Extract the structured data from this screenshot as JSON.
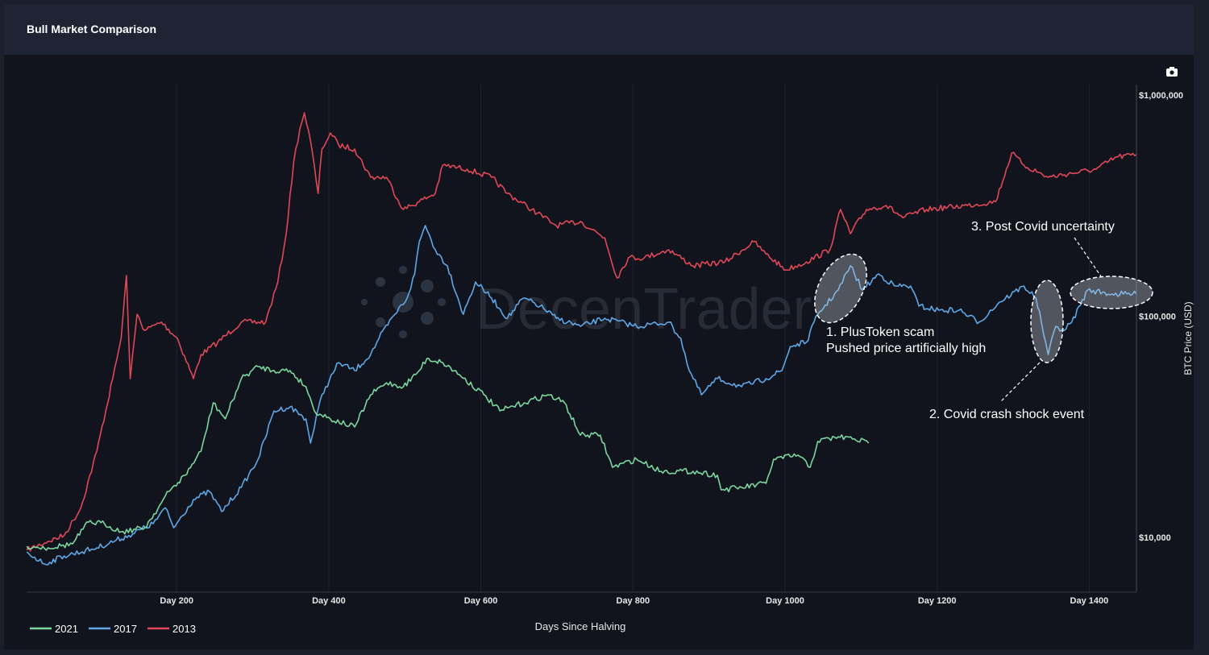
{
  "header": {
    "title": "Bull Market Comparison"
  },
  "toolbar": {
    "camera_icon": "camera-icon"
  },
  "watermark": "DecenTrader",
  "colors": {
    "2021": "#7bd6a0",
    "2017": "#5ea8e8",
    "2013": "#e04858",
    "background": "#11141d",
    "header": "#1e2433"
  },
  "chart_data": {
    "type": "line",
    "title": "Bull Market Comparison",
    "xlabel": "Days Since Halving",
    "ylabel": "BTC Price (USD)",
    "yscale": "log",
    "xlim": [
      0,
      1462
    ],
    "ylim": [
      5500,
      1150000
    ],
    "grid": "vertical",
    "legend_position": "bottom-left",
    "x_ticks": [
      {
        "value": 200,
        "label": "Day 200"
      },
      {
        "value": 400,
        "label": "Day 400"
      },
      {
        "value": 600,
        "label": "Day 600"
      },
      {
        "value": 800,
        "label": "Day 800"
      },
      {
        "value": 1000,
        "label": "Day 1000"
      },
      {
        "value": 1200,
        "label": "Day 1200"
      },
      {
        "value": 1400,
        "label": "Day 1400"
      }
    ],
    "y_ticks": [
      {
        "value": 10000,
        "label": "$10,000"
      },
      {
        "value": 100000,
        "label": "$100,000"
      },
      {
        "value": 1000000,
        "label": "$1,000,000"
      }
    ],
    "series": [
      {
        "name": "2021",
        "color": "#7bd6a0",
        "points": [
          [
            3,
            9120
          ],
          [
            31,
            8970
          ],
          [
            63,
            9350
          ],
          [
            84,
            11720
          ],
          [
            105,
            11530
          ],
          [
            127,
            10600
          ],
          [
            158,
            11060
          ],
          [
            190,
            16130
          ],
          [
            211,
            19090
          ],
          [
            232,
            24500
          ],
          [
            248,
            40600
          ],
          [
            264,
            34350
          ],
          [
            285,
            52200
          ],
          [
            307,
            59200
          ],
          [
            328,
            56800
          ],
          [
            349,
            56800
          ],
          [
            370,
            48000
          ],
          [
            381,
            37310
          ],
          [
            402,
            34350
          ],
          [
            434,
            31550
          ],
          [
            455,
            44150
          ],
          [
            476,
            50000
          ],
          [
            498,
            48000
          ],
          [
            519,
            56800
          ],
          [
            529,
            64400
          ],
          [
            550,
            61700
          ],
          [
            572,
            54400
          ],
          [
            604,
            44150
          ],
          [
            625,
            37310
          ],
          [
            657,
            40600
          ],
          [
            688,
            44150
          ],
          [
            710,
            40600
          ],
          [
            731,
            29000
          ],
          [
            757,
            29000
          ],
          [
            773,
            20750
          ],
          [
            805,
            22550
          ],
          [
            837,
            19900
          ],
          [
            879,
            19900
          ],
          [
            911,
            19090
          ],
          [
            916,
            16400
          ],
          [
            943,
            16820
          ],
          [
            975,
            17540
          ],
          [
            985,
            22550
          ],
          [
            1017,
            23540
          ],
          [
            1033,
            20750
          ],
          [
            1043,
            27160
          ],
          [
            1070,
            28500
          ],
          [
            1091,
            27900
          ],
          [
            1110,
            26680
          ]
        ]
      },
      {
        "name": "2017",
        "color": "#5ea8e8",
        "points": [
          [
            3,
            8600
          ],
          [
            26,
            7580
          ],
          [
            52,
            8240
          ],
          [
            95,
            8970
          ],
          [
            137,
            10200
          ],
          [
            169,
            11530
          ],
          [
            185,
            13600
          ],
          [
            196,
            11060
          ],
          [
            222,
            14830
          ],
          [
            243,
            16130
          ],
          [
            259,
            13090
          ],
          [
            285,
            16820
          ],
          [
            307,
            22550
          ],
          [
            328,
            37310
          ],
          [
            349,
            38900
          ],
          [
            370,
            34350
          ],
          [
            376,
            26680
          ],
          [
            391,
            44150
          ],
          [
            413,
            61700
          ],
          [
            434,
            56800
          ],
          [
            455,
            67100
          ],
          [
            466,
            79400
          ],
          [
            487,
            102000
          ],
          [
            503,
            120800
          ],
          [
            513,
            155300
          ],
          [
            519,
            217000
          ],
          [
            527,
            257000
          ],
          [
            540,
            200000
          ],
          [
            556,
            169000
          ],
          [
            577,
            102000
          ],
          [
            593,
            142800
          ],
          [
            614,
            120800
          ],
          [
            635,
            97900
          ],
          [
            656,
            120800
          ],
          [
            678,
            111100
          ],
          [
            699,
            97900
          ],
          [
            731,
            90000
          ],
          [
            763,
            97900
          ],
          [
            805,
            90000
          ],
          [
            847,
            94000
          ],
          [
            863,
            79400
          ],
          [
            874,
            56800
          ],
          [
            890,
            44150
          ],
          [
            911,
            52200
          ],
          [
            943,
            48000
          ],
          [
            975,
            52200
          ],
          [
            996,
            56800
          ],
          [
            1007,
            73000
          ],
          [
            1028,
            76200
          ],
          [
            1043,
            102000
          ],
          [
            1070,
            131300
          ],
          [
            1086,
            169000
          ],
          [
            1102,
            131300
          ],
          [
            1123,
            155300
          ],
          [
            1144,
            137000
          ],
          [
            1165,
            137000
          ],
          [
            1176,
            111100
          ],
          [
            1202,
            106500
          ],
          [
            1229,
            106500
          ],
          [
            1255,
            94000
          ],
          [
            1282,
            115800
          ],
          [
            1314,
            137000
          ],
          [
            1330,
            120800
          ],
          [
            1337,
            94000
          ],
          [
            1346,
            67100
          ],
          [
            1356,
            90000
          ],
          [
            1367,
            86300
          ],
          [
            1377,
            94000
          ],
          [
            1398,
            131300
          ],
          [
            1430,
            126000
          ],
          [
            1462,
            126000
          ]
        ]
      },
      {
        "name": "2013",
        "color": "#e04858",
        "points": [
          [
            3,
            8750
          ],
          [
            31,
            9600
          ],
          [
            52,
            10200
          ],
          [
            74,
            13600
          ],
          [
            95,
            24500
          ],
          [
            116,
            52200
          ],
          [
            127,
            79400
          ],
          [
            134,
            152700
          ],
          [
            139,
            52200
          ],
          [
            148,
            102000
          ],
          [
            158,
            86300
          ],
          [
            180,
            94000
          ],
          [
            201,
            79400
          ],
          [
            222,
            52200
          ],
          [
            232,
            67100
          ],
          [
            254,
            76200
          ],
          [
            285,
            94000
          ],
          [
            317,
            94000
          ],
          [
            333,
            142800
          ],
          [
            344,
            236000
          ],
          [
            354,
            502000
          ],
          [
            362,
            703000
          ],
          [
            368,
            831000
          ],
          [
            376,
            620000
          ],
          [
            386,
            359000
          ],
          [
            391,
            570000
          ],
          [
            402,
            674000
          ],
          [
            413,
            594000
          ],
          [
            434,
            570000
          ],
          [
            455,
            425000
          ],
          [
            476,
            425000
          ],
          [
            498,
            304000
          ],
          [
            519,
            330000
          ],
          [
            540,
            359000
          ],
          [
            550,
            482000
          ],
          [
            582,
            462000
          ],
          [
            614,
            425000
          ],
          [
            635,
            359000
          ],
          [
            667,
            304000
          ],
          [
            699,
            257000
          ],
          [
            731,
            268000
          ],
          [
            763,
            226000
          ],
          [
            779,
            149000
          ],
          [
            794,
            184000
          ],
          [
            815,
            184000
          ],
          [
            847,
            200000
          ],
          [
            879,
            169000
          ],
          [
            921,
            176000
          ],
          [
            959,
            217000
          ],
          [
            975,
            191000
          ],
          [
            1001,
            162000
          ],
          [
            1028,
            176000
          ],
          [
            1059,
            200000
          ],
          [
            1073,
            304000
          ],
          [
            1086,
            236000
          ],
          [
            1107,
            304000
          ],
          [
            1133,
            317000
          ],
          [
            1155,
            279000
          ],
          [
            1186,
            304000
          ],
          [
            1240,
            317000
          ],
          [
            1277,
            330000
          ],
          [
            1298,
            547000
          ],
          [
            1314,
            482000
          ],
          [
            1346,
            425000
          ],
          [
            1377,
            443000
          ],
          [
            1409,
            462000
          ],
          [
            1436,
            525000
          ],
          [
            1462,
            537000
          ]
        ]
      }
    ],
    "annotations": [
      {
        "label": "1. PlusToken scam",
        "sublabel": "Pushed price artificially high"
      },
      {
        "label": "2. Covid crash shock event"
      },
      {
        "label": "3. Post Covid uncertainty"
      }
    ]
  }
}
